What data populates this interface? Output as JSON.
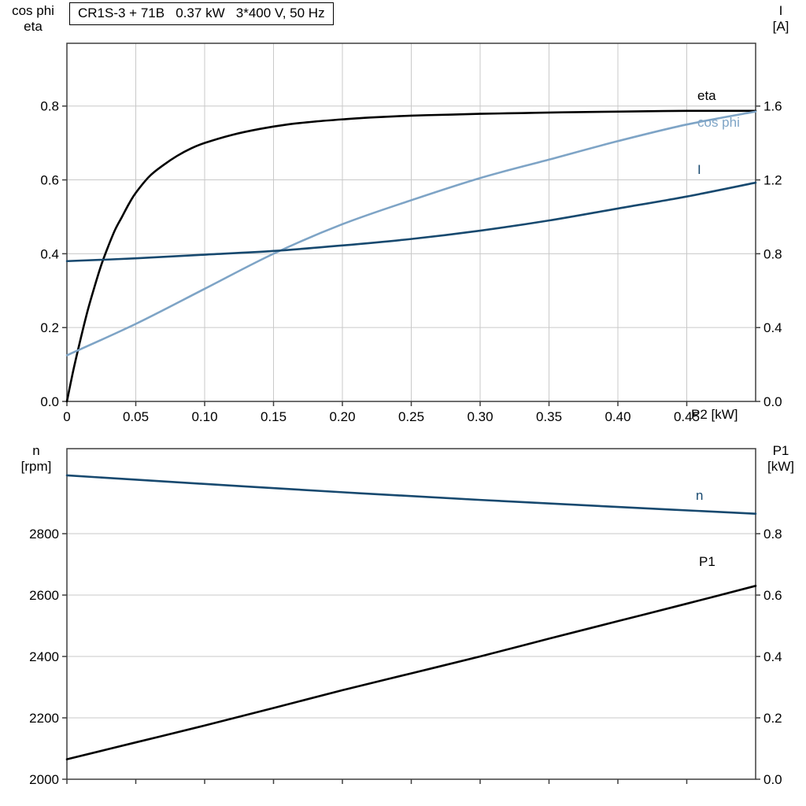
{
  "title_box": "CR1S-3 + 71B   0.37 kW   3*400 V, 50 Hz",
  "colors": {
    "frame": "#3f3f3f",
    "grid": "#c9c9c9",
    "text": "#000000",
    "black_curve": "#000000",
    "dark_blue_curve": "#17496f",
    "light_blue_curve": "#7ea4c6"
  },
  "chart_data": [
    {
      "type": "line",
      "title": "CR1S-3 + 71B   0.37 kW   3*400 V, 50 Hz",
      "x_label": "P2 [kW]",
      "xlim": [
        0,
        0.5
      ],
      "x_tick_values": [
        0,
        0.05,
        0.1,
        0.15,
        0.2,
        0.25,
        0.3,
        0.35,
        0.4,
        0.45
      ],
      "x_tick_labels": [
        "0",
        "0.05",
        "0.10",
        "0.15",
        "0.20",
        "0.25",
        "0.30",
        "0.35",
        "0.40",
        "0.45"
      ],
      "grid": {
        "vertical": true,
        "horizontal": true
      },
      "left_axis": {
        "label_lines": [
          "cos phi",
          "eta"
        ],
        "lim": [
          0,
          0.97
        ],
        "tick_values": [
          0,
          0.2,
          0.4,
          0.6,
          0.8
        ],
        "tick_labels": [
          "0.0",
          "0.2",
          "0.4",
          "0.6",
          "0.8"
        ]
      },
      "right_axis": {
        "label_lines": [
          "I",
          "[A]"
        ],
        "lim": [
          0,
          1.94
        ],
        "tick_values": [
          0,
          0.4,
          0.8,
          1.2,
          1.6
        ],
        "tick_labels": [
          "0.0",
          "0.4",
          "0.8",
          "1.2",
          "1.6"
        ]
      },
      "series": [
        {
          "name": "eta",
          "axis": "left",
          "color": "#000000",
          "points": [
            [
              0,
              0
            ],
            [
              0.005,
              0.09
            ],
            [
              0.01,
              0.17
            ],
            [
              0.015,
              0.245
            ],
            [
              0.02,
              0.31
            ],
            [
              0.025,
              0.37
            ],
            [
              0.03,
              0.42
            ],
            [
              0.035,
              0.465
            ],
            [
              0.04,
              0.5
            ],
            [
              0.045,
              0.535
            ],
            [
              0.05,
              0.565
            ],
            [
              0.06,
              0.61
            ],
            [
              0.07,
              0.64
            ],
            [
              0.08,
              0.665
            ],
            [
              0.09,
              0.685
            ],
            [
              0.1,
              0.7
            ],
            [
              0.12,
              0.722
            ],
            [
              0.14,
              0.738
            ],
            [
              0.16,
              0.75
            ],
            [
              0.18,
              0.758
            ],
            [
              0.2,
              0.764
            ],
            [
              0.22,
              0.769
            ],
            [
              0.25,
              0.774
            ],
            [
              0.28,
              0.777
            ],
            [
              0.3,
              0.779
            ],
            [
              0.33,
              0.781
            ],
            [
              0.36,
              0.783
            ],
            [
              0.4,
              0.785
            ],
            [
              0.45,
              0.787
            ],
            [
              0.5,
              0.787
            ]
          ]
        },
        {
          "name": "cos phi",
          "axis": "left",
          "color": "#7ea4c6",
          "points": [
            [
              0,
              0.125
            ],
            [
              0.05,
              0.21
            ],
            [
              0.1,
              0.305
            ],
            [
              0.15,
              0.4
            ],
            [
              0.2,
              0.48
            ],
            [
              0.25,
              0.545
            ],
            [
              0.3,
              0.605
            ],
            [
              0.35,
              0.655
            ],
            [
              0.4,
              0.705
            ],
            [
              0.45,
              0.75
            ],
            [
              0.5,
              0.785
            ]
          ]
        },
        {
          "name": "I",
          "axis": "right",
          "color": "#17496f",
          "points": [
            [
              0,
              0.76
            ],
            [
              0.05,
              0.775
            ],
            [
              0.1,
              0.795
            ],
            [
              0.15,
              0.815
            ],
            [
              0.2,
              0.845
            ],
            [
              0.25,
              0.88
            ],
            [
              0.3,
              0.925
            ],
            [
              0.35,
              0.98
            ],
            [
              0.4,
              1.045
            ],
            [
              0.45,
              1.11
            ],
            [
              0.5,
              1.185
            ]
          ]
        }
      ]
    },
    {
      "type": "line",
      "x_label": "",
      "xlim": [
        0,
        0.5
      ],
      "x_tick_values": [
        0,
        0.05,
        0.1,
        0.15,
        0.2,
        0.25,
        0.3,
        0.35,
        0.4,
        0.45
      ],
      "x_tick_labels": [],
      "grid": {
        "vertical": false,
        "horizontal": true
      },
      "left_axis": {
        "label_lines": [
          "n",
          "[rpm]"
        ],
        "lim": [
          2000,
          3077
        ],
        "tick_values": [
          2000,
          2200,
          2400,
          2600,
          2800
        ],
        "tick_labels": [
          "2000",
          "2200",
          "2400",
          "2600",
          "2800"
        ]
      },
      "right_axis": {
        "label_lines": [
          "P1",
          "[kW]"
        ],
        "lim": [
          0,
          1.077
        ],
        "tick_values": [
          0,
          0.2,
          0.4,
          0.6,
          0.8
        ],
        "tick_labels": [
          "0.0",
          "0.2",
          "0.4",
          "0.6",
          "0.8"
        ]
      },
      "series": [
        {
          "name": "n",
          "axis": "left",
          "color": "#17496f",
          "points": [
            [
              0,
              2990
            ],
            [
              0.1,
              2962
            ],
            [
              0.2,
              2935
            ],
            [
              0.3,
              2910
            ],
            [
              0.4,
              2887
            ],
            [
              0.5,
              2865
            ]
          ]
        },
        {
          "name": "P1",
          "axis": "right",
          "color": "#000000",
          "points": [
            [
              0,
              0.065
            ],
            [
              0.05,
              0.12
            ],
            [
              0.1,
              0.175
            ],
            [
              0.15,
              0.232
            ],
            [
              0.2,
              0.29
            ],
            [
              0.25,
              0.345
            ],
            [
              0.3,
              0.4
            ],
            [
              0.35,
              0.458
            ],
            [
              0.4,
              0.515
            ],
            [
              0.45,
              0.572
            ],
            [
              0.5,
              0.63
            ]
          ]
        }
      ]
    }
  ]
}
